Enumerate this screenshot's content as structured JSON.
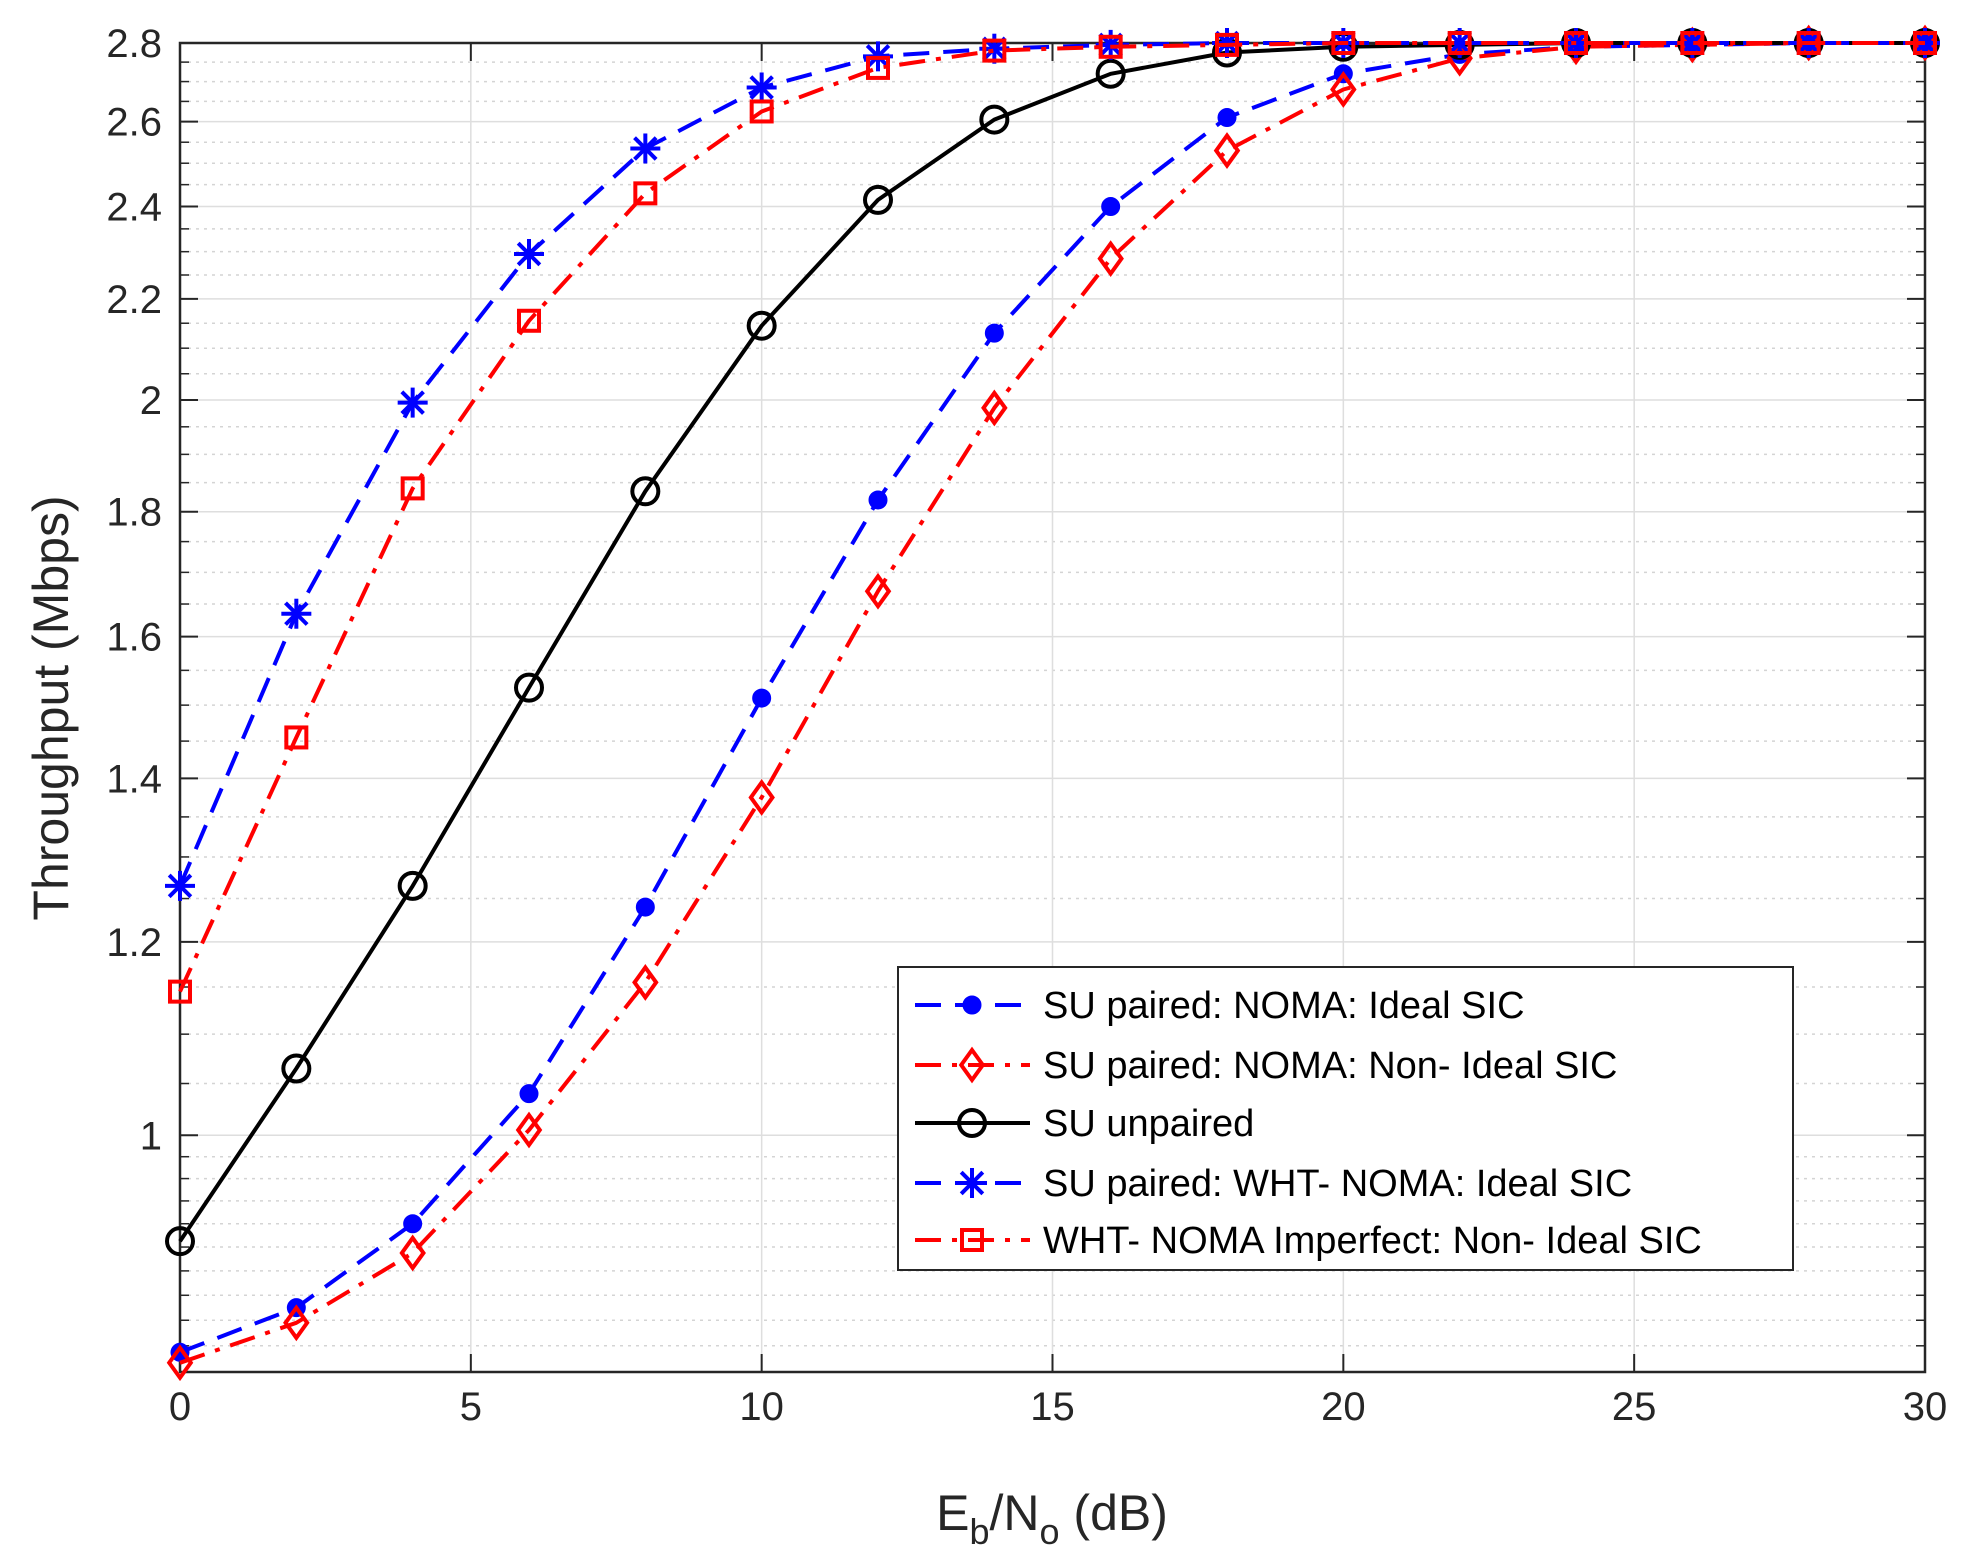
{
  "chart_data": {
    "type": "line",
    "xlabel": {
      "main": "E",
      "sub1": "b",
      "mid": "/N",
      "sub2": "o",
      "tail": " (dB)"
    },
    "ylabel": "Throughput (Mbps)",
    "xlim": [
      0,
      30
    ],
    "ylim": [
      0.8,
      2.8
    ],
    "yscale": "log",
    "grid": true,
    "legend_position": "lower-right",
    "x_ticks": [
      0,
      5,
      10,
      15,
      20,
      25,
      30
    ],
    "x_tick_labels": [
      "0",
      "5",
      "10",
      "15",
      "20",
      "25",
      "30"
    ],
    "y_ticks": [
      1,
      1.2,
      1.4,
      1.6,
      1.8,
      2,
      2.2,
      2.4,
      2.6,
      2.8
    ],
    "y_tick_labels": [
      "1",
      "1.2",
      "1.4",
      "1.6",
      "1.8",
      "2",
      "2.2",
      "2.4",
      "2.6",
      "2.8"
    ],
    "y_minor_ticks": [
      0.82,
      0.84,
      0.86,
      0.88,
      0.9,
      0.92,
      0.94,
      0.96,
      0.98,
      1.05,
      1.1,
      1.15,
      1.25,
      1.3,
      1.35,
      1.45,
      1.5,
      1.55,
      1.65,
      1.7,
      1.75,
      1.85,
      1.9,
      1.95,
      2.05,
      2.1,
      2.15,
      2.25,
      2.3,
      2.35,
      2.45,
      2.5,
      2.55,
      2.65,
      2.7,
      2.75
    ],
    "x": [
      0,
      2,
      4,
      6,
      8,
      10,
      12,
      14,
      16,
      18,
      20,
      22,
      24,
      26,
      28,
      30
    ],
    "series": [
      {
        "name": "SU paired: NOMA: Ideal SIC",
        "color": "#0000ff",
        "dash": "dashed",
        "marker": "dot",
        "values": [
          0.815,
          0.85,
          0.92,
          1.04,
          1.24,
          1.51,
          1.82,
          2.13,
          2.4,
          2.61,
          2.72,
          2.77,
          2.79,
          2.795,
          2.8,
          2.8
        ]
      },
      {
        "name": "SU paired: NOMA: Non- Ideal SIC",
        "color": "#ff0000",
        "dash": "dashdot",
        "marker": "diamond",
        "values": [
          0.807,
          0.838,
          0.895,
          1.005,
          1.155,
          1.375,
          1.67,
          1.985,
          2.285,
          2.53,
          2.68,
          2.76,
          2.79,
          2.795,
          2.8,
          2.8
        ]
      },
      {
        "name": "SU unpaired",
        "color": "#000000",
        "dash": "solid",
        "marker": "circle",
        "values": [
          0.905,
          1.065,
          1.265,
          1.525,
          1.835,
          2.145,
          2.415,
          2.605,
          2.72,
          2.775,
          2.79,
          2.795,
          2.8,
          2.8,
          2.8,
          2.8
        ]
      },
      {
        "name": "SU paired: WHT- NOMA: Ideal SIC",
        "color": "#0000ff",
        "dash": "dashed",
        "marker": "asterisk",
        "values": [
          1.265,
          1.635,
          1.995,
          2.295,
          2.535,
          2.685,
          2.765,
          2.785,
          2.795,
          2.8,
          2.8,
          2.8,
          2.8,
          2.8,
          2.8,
          2.8
        ]
      },
      {
        "name": "WHT- NOMA Imperfect: Non- Ideal SIC",
        "color": "#ff0000",
        "dash": "dashdot",
        "marker": "square",
        "values": [
          1.145,
          1.455,
          1.84,
          2.155,
          2.43,
          2.625,
          2.735,
          2.78,
          2.79,
          2.795,
          2.8,
          2.8,
          2.8,
          2.8,
          2.8,
          2.8
        ]
      }
    ]
  }
}
